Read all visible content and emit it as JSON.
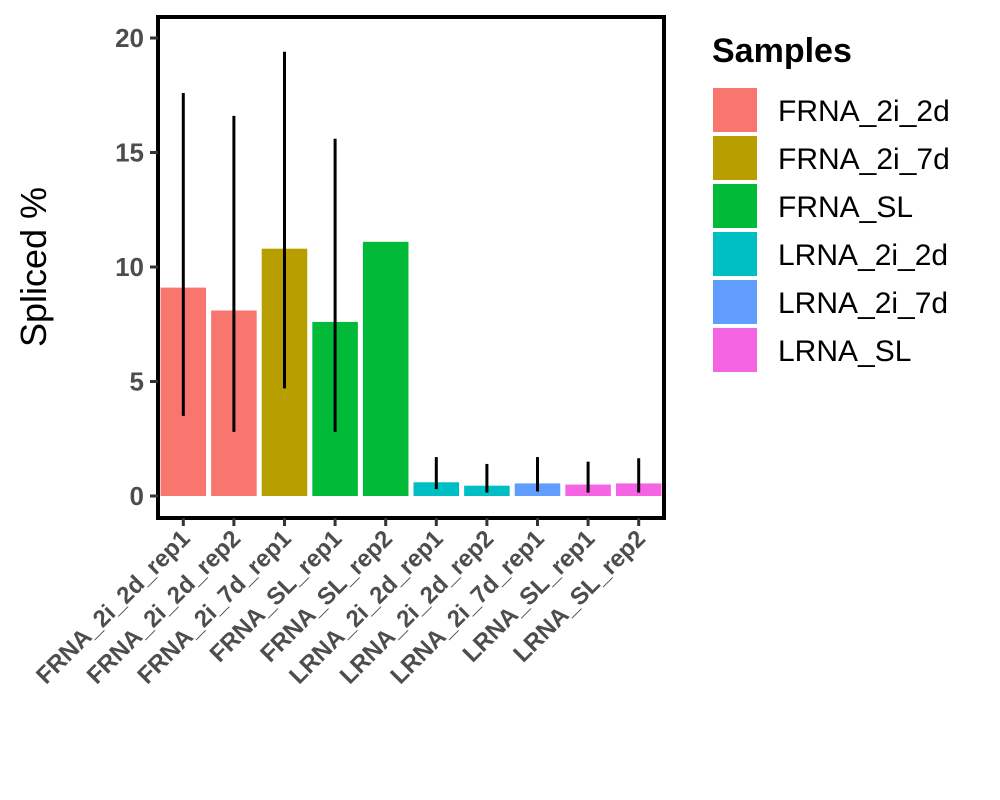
{
  "chart_data": {
    "type": "bar",
    "ylabel": "Spliced %",
    "xlabel": "",
    "ylim": [
      -1,
      21
    ],
    "yticks": [
      0,
      5,
      10,
      15,
      20
    ],
    "categories": [
      "FRNA_2i_2d_rep1",
      "FRNA_2i_2d_rep2",
      "FRNA_2i_7d_rep1",
      "FRNA_SL_rep1",
      "FRNA_SL_rep2",
      "LRNA_2i_2d_rep1",
      "LRNA_2i_2d_rep2",
      "LRNA_2i_7d_rep1",
      "LRNA_SL_rep1",
      "LRNA_SL_rep2"
    ],
    "values": [
      9.1,
      8.1,
      10.8,
      7.6,
      11.1,
      0.6,
      0.45,
      0.55,
      0.5,
      0.55
    ],
    "error_low": [
      3.5,
      2.8,
      4.7,
      2.8,
      null,
      0.3,
      0.15,
      0.2,
      0.15,
      0.15
    ],
    "error_high": [
      17.6,
      16.6,
      19.4,
      15.6,
      null,
      1.7,
      1.4,
      1.7,
      1.5,
      1.65
    ],
    "groups": [
      "FRNA_2i_2d",
      "FRNA_2i_2d",
      "FRNA_2i_7d",
      "FRNA_SL",
      "FRNA_SL",
      "LRNA_2i_2d",
      "LRNA_2i_2d",
      "LRNA_2i_7d",
      "LRNA_SL",
      "LRNA_SL"
    ],
    "legend": {
      "title": "Samples",
      "placement": "right",
      "entries": [
        {
          "name": "FRNA_2i_2d",
          "color": "#F8766D"
        },
        {
          "name": "FRNA_2i_7d",
          "color": "#B79F00"
        },
        {
          "name": "FRNA_SL",
          "color": "#00BA38"
        },
        {
          "name": "LRNA_2i_2d",
          "color": "#00BFC4"
        },
        {
          "name": "LRNA_2i_7d",
          "color": "#619CFF"
        },
        {
          "name": "LRNA_SL",
          "color": "#F564E3"
        }
      ]
    },
    "grid": false
  }
}
